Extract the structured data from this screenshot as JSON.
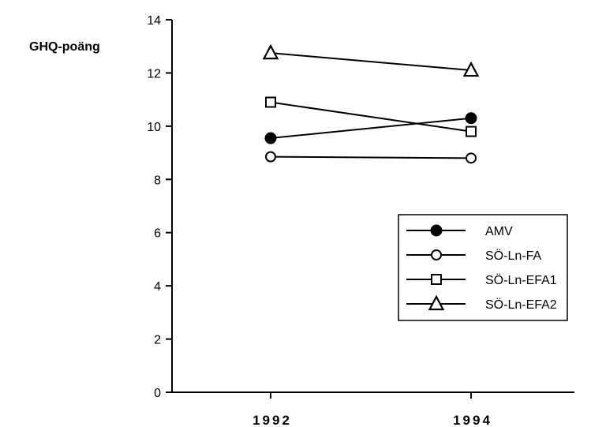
{
  "chart_data": {
    "type": "line",
    "title": "",
    "xlabel": "",
    "ylabel": "GHQ-poäng",
    "categories": [
      "1992",
      "1994"
    ],
    "yticks": [
      "0",
      "2",
      "4",
      "6",
      "8",
      "10",
      "12",
      "14"
    ],
    "ylim": [
      0,
      14
    ],
    "grid": false,
    "legend_position": "right",
    "series": [
      {
        "name": "AMV",
        "marker": "filled-circle",
        "values": [
          9.55,
          10.3
        ]
      },
      {
        "name": "SÖ-Ln-FA",
        "marker": "open-circle",
        "values": [
          8.85,
          8.8
        ]
      },
      {
        "name": "SÖ-Ln-EFA1",
        "marker": "open-square",
        "values": [
          10.9,
          9.8
        ]
      },
      {
        "name": "SÖ-Ln-EFA2",
        "marker": "open-triangle",
        "values": [
          12.75,
          12.1
        ]
      }
    ]
  }
}
